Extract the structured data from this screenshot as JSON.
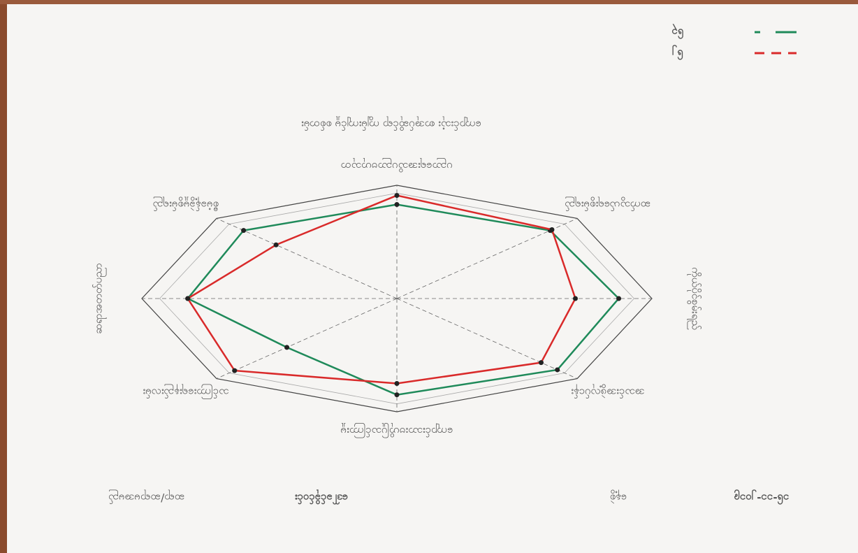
{
  "chart_data": {
    "type": "radar",
    "title": "ကျောင်းသုံး စာအုပ်ဆိုင်ရာ ကျွမ်းကျင်မှု စစ်တမ်း",
    "categories": [
      "ကိုယ်ပိုင်စွမ်းရည်",
      "ဆက်သွယ်ရေးစွမ်းရည်",
      "ပညာရေးအသိပညာဗဟုသုတ",
      "စီမံခန့်ခွဲမှုစွမ်းရည်",
      "ဆရာအတတ်ပညာ",
      "သင်ကြားရေးနည်းလမ်း",
      "ကျောင်းသားဗဟိုပြုသင်ကြားမှု",
      "အသင်းအဖွဲ့လုပ်ငန်း"
    ],
    "series": [
      {
        "name": "၆၃",
        "color": "#1f8a5a",
        "values": [
          8.7,
          8.5,
          8.3,
          8.5,
          8.2,
          6.1,
          8.5,
          8.9
        ]
      },
      {
        "name": "၆၂",
        "color": "#d92a2a",
        "values": [
          7.0,
          8.6,
          9.1,
          6.7,
          8.2,
          9.0,
          7.5,
          8.0
        ]
      }
    ],
    "rlim": [
      0,
      10
    ]
  },
  "footer": {
    "name_label": "ဆရာ/ဆရာမအမည်",
    "name": "ဒေါ်ခင်ခိုင်ဝင်း",
    "date_label": "နေ့စွဲ",
    "date": "၁၆-၁၁-၂၀၁၉"
  }
}
